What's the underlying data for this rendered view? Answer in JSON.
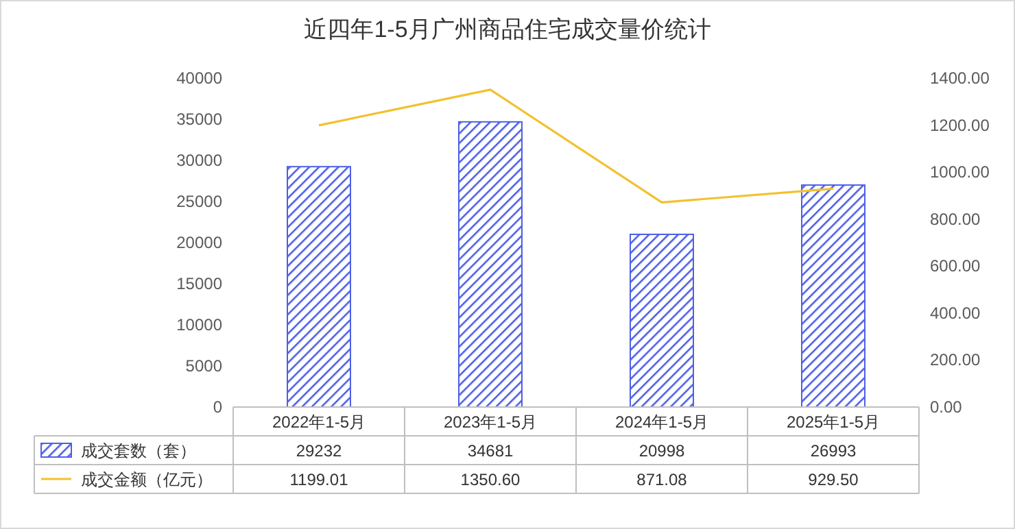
{
  "chart_data": {
    "type": "bar",
    "title": "近四年1-5月广州商品住宅成交量价统计",
    "categories": [
      "2022年1-5月",
      "2023年1-5月",
      "2024年1-5月",
      "2025年1-5月"
    ],
    "series": [
      {
        "name": "成交套数（套）",
        "color": "#4d5fe6",
        "values": [
          29232,
          34681,
          20998,
          26993
        ],
        "value_labels": [
          "29232",
          "34681",
          "20998",
          "26993"
        ]
      },
      {
        "name": "成交金额（亿元）",
        "type": "line",
        "axis": "y2",
        "color": "#f2c12e",
        "values": [
          1199.01,
          1350.6,
          871.08,
          929.5
        ],
        "value_labels": [
          "1199.01",
          "1350.60",
          "871.08",
          "929.50"
        ]
      }
    ],
    "ylim": [
      0,
      40000
    ],
    "yticks": [
      0,
      5000,
      10000,
      15000,
      20000,
      25000,
      30000,
      35000,
      40000
    ],
    "y2lim": [
      0,
      1400
    ],
    "y2ticks": [
      {
        "value": 0,
        "label": "0.00"
      },
      {
        "value": 200,
        "label": "200.00"
      },
      {
        "value": 400,
        "label": "400.00"
      },
      {
        "value": 600,
        "label": "600.00"
      },
      {
        "value": 800,
        "label": "800.00"
      },
      {
        "value": 1000,
        "label": "1000.00"
      },
      {
        "value": 1200,
        "label": "1200.00"
      },
      {
        "value": 1400,
        "label": "1400.00"
      }
    ],
    "legend": "bottom",
    "marker": "none",
    "line_style": "solid"
  }
}
